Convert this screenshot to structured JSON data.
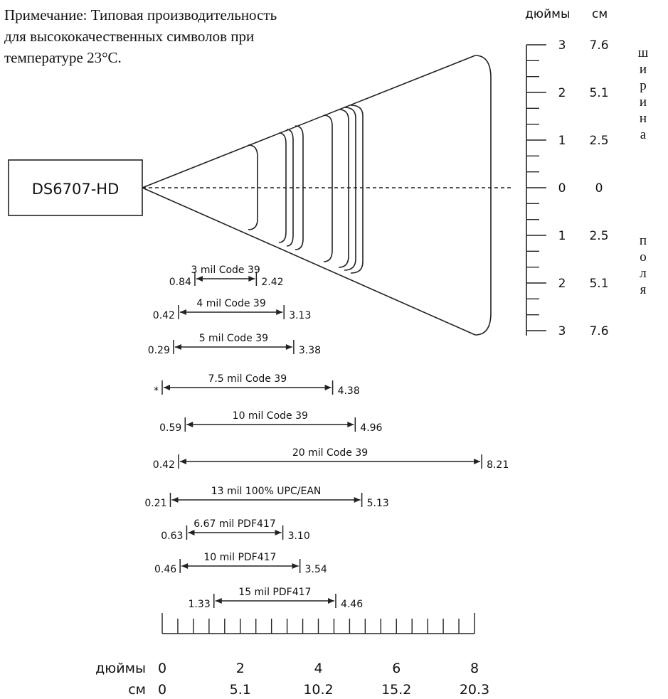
{
  "note": {
    "lines": [
      "Примечание: Типовая производительность",
      "для высококачественных символов при",
      "температуре 23°C."
    ]
  },
  "device": {
    "label": "DS6707-HD"
  },
  "vertical_scale": {
    "units_header": {
      "inches": "дюймы",
      "cm": "см"
    },
    "ticks": [
      {
        "inches": "3",
        "cm": "7.6"
      },
      {
        "inches": "2",
        "cm": "5.1"
      },
      {
        "inches": "1",
        "cm": "2.5"
      },
      {
        "inches": "0",
        "cm": "0"
      },
      {
        "inches": "1",
        "cm": "2.5"
      },
      {
        "inches": "2",
        "cm": "5.1"
      },
      {
        "inches": "3",
        "cm": "7.6"
      }
    ]
  },
  "side_label": {
    "top": "ширина",
    "bottom": "поля"
  },
  "ranges": [
    {
      "label": "3 mil Code 39",
      "near": "0.84",
      "far": "2.42"
    },
    {
      "label": "4 mil Code 39",
      "near": "0.42",
      "far": "3.13"
    },
    {
      "label": "5 mil Code 39",
      "near": "0.29",
      "far": "3.38"
    },
    {
      "label": "7.5 mil Code 39",
      "near": "*",
      "far": "4.38"
    },
    {
      "label": "10 mil Code 39",
      "near": "0.59",
      "far": "4.96"
    },
    {
      "label": "20 mil Code 39",
      "near": "0.42",
      "far": "8.21"
    },
    {
      "label": "13 mil 100% UPC/EAN",
      "near": "0.21",
      "far": "5.13"
    },
    {
      "label": "6.67 mil PDF417",
      "near": "0.63",
      "far": "3.10"
    },
    {
      "label": "10 mil PDF417",
      "near": "0.46",
      "far": "3.54"
    },
    {
      "label": "15 mil PDF417",
      "near": "1.33",
      "far": "4.46"
    }
  ],
  "horizontal_scale": {
    "inches_label": "дюймы",
    "cm_label": "см",
    "inches_ticks": [
      "0",
      "2",
      "4",
      "6",
      "8"
    ],
    "cm_ticks": [
      "0",
      "5.1",
      "10.2",
      "15.2",
      "20.3"
    ]
  }
}
